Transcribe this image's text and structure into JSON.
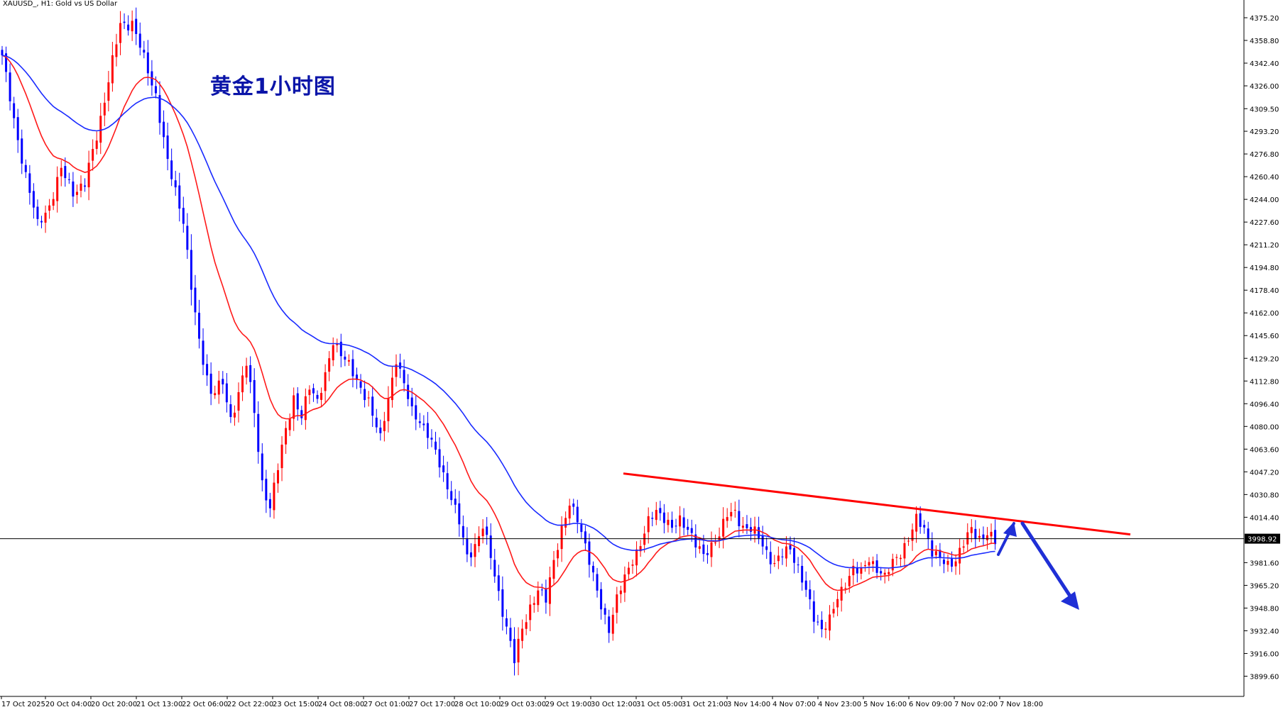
{
  "header": {
    "title": "XAUUSD_, H1:  Gold vs US Dollar"
  },
  "annotation": {
    "text": "黄金1小时图"
  },
  "chart_data": {
    "type": "candlestick",
    "symbol": "XAUUSD_",
    "timeframe": "H1",
    "description": "Gold vs US Dollar",
    "ylim": [
      3885,
      4388
    ],
    "yticks": [
      "4375.20",
      "4358.80",
      "4342.40",
      "4326.00",
      "4309.50",
      "4293.20",
      "4276.80",
      "4260.40",
      "4244.00",
      "4227.60",
      "4211.20",
      "4194.80",
      "4178.40",
      "4162.00",
      "4145.60",
      "4129.20",
      "4112.80",
      "4096.40",
      "4080.00",
      "4063.60",
      "4047.20",
      "4030.80",
      "4014.40",
      "3981.60",
      "3965.20",
      "3948.80",
      "3932.40",
      "3916.00",
      "3899.60"
    ],
    "current_price": "3998.92",
    "xticks": [
      "17 Oct 2025",
      "20 Oct 04:00",
      "20 Oct 20:00",
      "21 Oct 13:00",
      "22 Oct 06:00",
      "22 Oct 22:00",
      "23 Oct 15:00",
      "24 Oct 08:00",
      "27 Oct 01:00",
      "27 Oct 17:00",
      "28 Oct 10:00",
      "29 Oct 03:00",
      "29 Oct 19:00",
      "30 Oct 12:00",
      "31 Oct 05:00",
      "31 Oct 21:00",
      "3 Nov 14:00",
      "4 Nov 07:00",
      "4 Nov 23:00",
      "5 Nov 16:00",
      "6 Nov 09:00",
      "7 Nov 02:00",
      "7 Nov 18:00"
    ],
    "close_anchors": [
      [
        0,
        4348
      ],
      [
        3,
        4300
      ],
      [
        6,
        4262
      ],
      [
        9,
        4225
      ],
      [
        12,
        4240
      ],
      [
        15,
        4265
      ],
      [
        18,
        4250
      ],
      [
        21,
        4255
      ],
      [
        24,
        4290
      ],
      [
        27,
        4330
      ],
      [
        30,
        4370
      ],
      [
        33,
        4372
      ],
      [
        36,
        4345
      ],
      [
        39,
        4320
      ],
      [
        42,
        4270
      ],
      [
        44,
        4250
      ],
      [
        46,
        4230
      ],
      [
        48,
        4180
      ],
      [
        50,
        4140
      ],
      [
        53,
        4105
      ],
      [
        56,
        4110
      ],
      [
        58,
        4085
      ],
      [
        60,
        4105
      ],
      [
        62,
        4125
      ],
      [
        64,
        4090
      ],
      [
        66,
        4040
      ],
      [
        68,
        4020
      ],
      [
        70,
        4050
      ],
      [
        72,
        4080
      ],
      [
        74,
        4100
      ],
      [
        76,
        4085
      ],
      [
        78,
        4110
      ],
      [
        80,
        4100
      ],
      [
        82,
        4115
      ],
      [
        84,
        4140
      ],
      [
        86,
        4135
      ],
      [
        88,
        4125
      ],
      [
        90,
        4110
      ],
      [
        93,
        4100
      ],
      [
        96,
        4070
      ],
      [
        98,
        4100
      ],
      [
        100,
        4130
      ],
      [
        102,
        4110
      ],
      [
        104,
        4090
      ],
      [
        106,
        4085
      ],
      [
        108,
        4075
      ],
      [
        110,
        4060
      ],
      [
        112,
        4045
      ],
      [
        114,
        4030
      ],
      [
        116,
        4010
      ],
      [
        118,
        3985
      ],
      [
        120,
        3995
      ],
      [
        122,
        4008
      ],
      [
        124,
        3985
      ],
      [
        126,
        3960
      ],
      [
        128,
        3935
      ],
      [
        130,
        3910
      ],
      [
        132,
        3935
      ],
      [
        134,
        3950
      ],
      [
        136,
        3960
      ],
      [
        138,
        3955
      ],
      [
        140,
        3985
      ],
      [
        142,
        4005
      ],
      [
        144,
        4022
      ],
      [
        146,
        4015
      ],
      [
        148,
        3995
      ],
      [
        150,
        3970
      ],
      [
        152,
        3950
      ],
      [
        154,
        3935
      ],
      [
        156,
        3955
      ],
      [
        158,
        3970
      ],
      [
        160,
        3985
      ],
      [
        162,
        3995
      ],
      [
        164,
        4010
      ],
      [
        166,
        4020
      ],
      [
        168,
        4015
      ],
      [
        170,
        4005
      ],
      [
        172,
        4012
      ],
      [
        174,
        4008
      ],
      [
        176,
        3995
      ],
      [
        178,
        3985
      ],
      [
        180,
        3995
      ],
      [
        182,
        4003
      ],
      [
        184,
        4015
      ],
      [
        186,
        4018
      ],
      [
        188,
        4008
      ],
      [
        190,
        4005
      ],
      [
        192,
        4000
      ],
      [
        194,
        3990
      ],
      [
        196,
        3980
      ],
      [
        198,
        3987
      ],
      [
        200,
        3993
      ],
      [
        202,
        3978
      ],
      [
        204,
        3960
      ],
      [
        206,
        3942
      ],
      [
        208,
        3935
      ],
      [
        210,
        3940
      ],
      [
        212,
        3955
      ],
      [
        214,
        3968
      ],
      [
        216,
        3978
      ],
      [
        218,
        3973
      ],
      [
        220,
        3985
      ],
      [
        222,
        3978
      ],
      [
        224,
        3970
      ],
      [
        226,
        3982
      ],
      [
        228,
        3990
      ],
      [
        230,
        3998
      ],
      [
        232,
        4012
      ],
      [
        234,
        4008
      ],
      [
        236,
        3990
      ],
      [
        238,
        3983
      ],
      [
        240,
        3980
      ],
      [
        242,
        3985
      ],
      [
        244,
        3995
      ],
      [
        246,
        4005
      ],
      [
        248,
        4000
      ],
      [
        250,
        4003
      ],
      [
        252,
        3995
      ]
    ],
    "series": [
      {
        "name": "",
        "color": "#ff1a1a",
        "role": "moving-average-fast"
      },
      {
        "name": "",
        "color": "#1a2bff",
        "role": "moving-average-slow"
      }
    ],
    "annotations": [
      {
        "type": "trendline",
        "color": "#ff0000",
        "from": [
          4046,
          "30 Oct 12:00"
        ],
        "to": [
          4002,
          "beyond 7 Nov 18:00"
        ]
      },
      {
        "type": "arrow",
        "color": "#1f2fd6",
        "direction": "up-then-down"
      }
    ],
    "grid": false,
    "colors": {
      "bull": "#ff0000",
      "bear": "#0000ff",
      "background": "#ffffff",
      "axis": "#000000"
    }
  }
}
